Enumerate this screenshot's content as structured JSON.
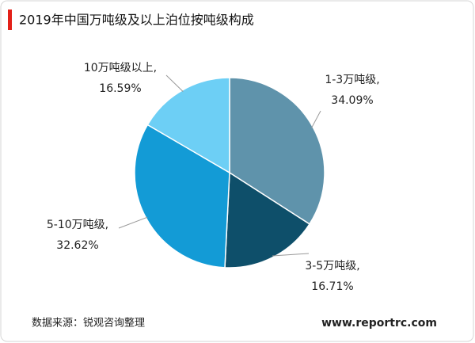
{
  "chart_data": {
    "type": "pie",
    "title": "2019年中国万吨级及以上泊位按吨级构成",
    "categories": [
      "1-3万吨级,",
      "3-5万吨级,",
      "5-10万吨级,",
      "10万吨级以上,"
    ],
    "values": [
      34.09,
      16.71,
      32.62,
      16.59
    ],
    "value_labels": [
      "34.09%",
      "16.71%",
      "32.62%",
      "16.59%"
    ],
    "colors": [
      "#5f93ab",
      "#0e4f6a",
      "#139bd6",
      "#6dcff5"
    ],
    "source": "数据来源：锐观咨询整理",
    "website": "www.reportrc.com"
  }
}
